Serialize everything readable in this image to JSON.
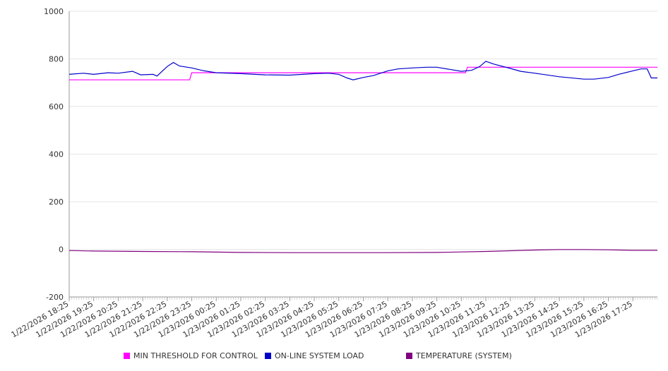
{
  "chart_data": {
    "type": "line",
    "y_axis": {
      "range": [
        -200,
        1000
      ],
      "ticks": [
        -200,
        0,
        200,
        400,
        600,
        800,
        1000
      ],
      "grid": true
    },
    "x_axis": {
      "range": [
        "2026-01-22T18:25",
        "2026-01-23T18:25"
      ],
      "tick_labels": [
        "1/22/2026 18:25",
        "1/22/2026 19:25",
        "1/22/2026 20:25",
        "1/22/2026 21:25",
        "1/22/2026 22:25",
        "1/22/2026 23:25",
        "1/23/2026 00:25",
        "1/23/2026 01:25",
        "1/23/2026 02:25",
        "1/23/2026 03:25",
        "1/23/2026 04:25",
        "1/23/2026 05:25",
        "1/23/2026 06:25",
        "1/23/2026 07:25",
        "1/23/2026 08:25",
        "1/23/2026 09:25",
        "1/23/2026 10:25",
        "1/23/2026 11:25",
        "1/23/2026 12:25",
        "1/23/2026 13:25",
        "1/23/2026 14:25",
        "1/23/2026 15:25",
        "1/23/2026 16:25",
        "1/23/2026 17:25"
      ]
    },
    "legend_position": "bottom",
    "series": [
      {
        "name": "MIN THRESHOLD FOR CONTROL",
        "color": "#ff00ff",
        "points": [
          [
            "1/22/2026 18:25",
            712
          ],
          [
            "1/22/2026 23:20",
            712
          ],
          [
            "1/22/2026 23:25",
            742
          ],
          [
            "1/23/2026 10:35",
            742
          ],
          [
            "1/23/2026 10:40",
            765
          ],
          [
            "1/23/2026 18:25",
            765
          ]
        ]
      },
      {
        "name": "ON-LINE SYSTEM LOAD",
        "color": "#0000cc",
        "points": [
          [
            "1/22/2026 18:25",
            735
          ],
          [
            "1/22/2026 19:00",
            740
          ],
          [
            "1/22/2026 19:25",
            735
          ],
          [
            "1/22/2026 20:00",
            742
          ],
          [
            "1/22/2026 20:25",
            740
          ],
          [
            "1/22/2026 21:00",
            748
          ],
          [
            "1/22/2026 21:20",
            733
          ],
          [
            "1/22/2026 21:50",
            735
          ],
          [
            "1/22/2026 22:00",
            728
          ],
          [
            "1/22/2026 22:25",
            768
          ],
          [
            "1/22/2026 22:40",
            785
          ],
          [
            "1/22/2026 22:55",
            770
          ],
          [
            "1/22/2026 23:25",
            762
          ],
          [
            "1/22/2026 23:55",
            750
          ],
          [
            "1/23/2026 00:25",
            742
          ],
          [
            "1/23/2026 01:25",
            738
          ],
          [
            "1/23/2026 02:25",
            733
          ],
          [
            "1/23/2026 03:25",
            732
          ],
          [
            "1/23/2026 04:25",
            738
          ],
          [
            "1/23/2026 05:00",
            740
          ],
          [
            "1/23/2026 05:25",
            735
          ],
          [
            "1/23/2026 05:45",
            720
          ],
          [
            "1/23/2026 06:00",
            712
          ],
          [
            "1/23/2026 06:25",
            722
          ],
          [
            "1/23/2026 06:50",
            730
          ],
          [
            "1/23/2026 07:25",
            750
          ],
          [
            "1/23/2026 07:50",
            758
          ],
          [
            "1/23/2026 08:25",
            762
          ],
          [
            "1/23/2026 09:00",
            765
          ],
          [
            "1/23/2026 09:25",
            765
          ],
          [
            "1/23/2026 10:00",
            755
          ],
          [
            "1/23/2026 10:25",
            748
          ],
          [
            "1/23/2026 10:50",
            752
          ],
          [
            "1/23/2026 11:10",
            768
          ],
          [
            "1/23/2026 11:25",
            790
          ],
          [
            "1/23/2026 11:45",
            778
          ],
          [
            "1/23/2026 12:25",
            760
          ],
          [
            "1/23/2026 12:50",
            748
          ],
          [
            "1/23/2026 13:25",
            740
          ],
          [
            "1/23/2026 14:25",
            725
          ],
          [
            "1/23/2026 15:25",
            715
          ],
          [
            "1/23/2026 15:50",
            715
          ],
          [
            "1/23/2026 16:25",
            722
          ],
          [
            "1/23/2026 16:50",
            735
          ],
          [
            "1/23/2026 17:25",
            750
          ],
          [
            "1/23/2026 17:45",
            758
          ],
          [
            "1/23/2026 18:00",
            758
          ],
          [
            "1/23/2026 18:10",
            720
          ],
          [
            "1/23/2026 18:25",
            720
          ]
        ]
      },
      {
        "name": "TEMPERATURE (SYSTEM)",
        "color": "#800080",
        "points": [
          [
            "1/22/2026 18:25",
            -5
          ],
          [
            "1/22/2026 19:25",
            -7
          ],
          [
            "1/22/2026 21:25",
            -9
          ],
          [
            "1/22/2026 23:25",
            -10
          ],
          [
            "1/23/2026 01:25",
            -13
          ],
          [
            "1/23/2026 03:25",
            -14
          ],
          [
            "1/23/2026 05:25",
            -14
          ],
          [
            "1/23/2026 07:25",
            -14
          ],
          [
            "1/23/2026 09:25",
            -13
          ],
          [
            "1/23/2026 10:25",
            -11
          ],
          [
            "1/23/2026 11:25",
            -9
          ],
          [
            "1/23/2026 12:25",
            -6
          ],
          [
            "1/23/2026 13:25",
            -3
          ],
          [
            "1/23/2026 14:25",
            -1
          ],
          [
            "1/23/2026 15:25",
            -1
          ],
          [
            "1/23/2026 16:25",
            -2
          ],
          [
            "1/23/2026 17:25",
            -4
          ],
          [
            "1/23/2026 18:25",
            -4
          ]
        ]
      }
    ]
  }
}
